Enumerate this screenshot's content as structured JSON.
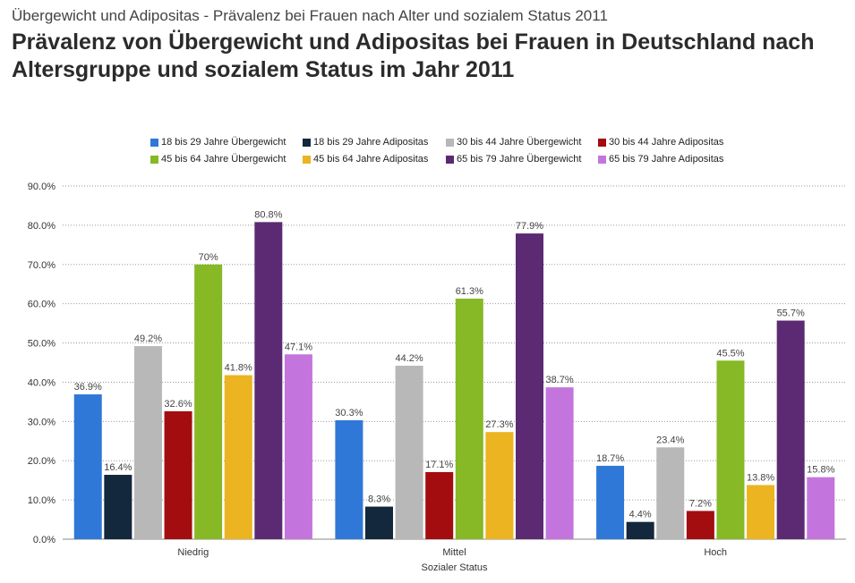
{
  "header": {
    "supertitle": "Übergewicht und Adipositas - Prävalenz bei Frauen nach Alter und sozialem Status 2011",
    "title": "Prävalenz von Übergewicht und Adipositas bei Frauen in Deutschland nach Altersgruppe und sozialem Status im Jahr 2011"
  },
  "chart_data": {
    "type": "bar",
    "title": "Prävalenz von Übergewicht und Adipositas bei Frauen in Deutschland nach Altersgruppe und sozialem Status im Jahr 2011",
    "xlabel": "Sozialer Status",
    "ylabel": "",
    "categories": [
      "Niedrig",
      "Mittel",
      "Hoch"
    ],
    "ylim": [
      0,
      90
    ],
    "yticks": [
      0,
      10,
      20,
      30,
      40,
      50,
      60,
      70,
      80,
      90
    ],
    "ytick_labels": [
      "0.0%",
      "10.0%",
      "20.0%",
      "30.0%",
      "40.0%",
      "50.0%",
      "60.0%",
      "70.0%",
      "80.0%",
      "90.0%"
    ],
    "grid": true,
    "legend_position": "top",
    "series": [
      {
        "name": "18 bis 29 Jahre Übergewicht",
        "color": "#2f78d8",
        "values": [
          36.9,
          30.3,
          18.7
        ],
        "labels": [
          "36.9%",
          "30.3%",
          "18.7%"
        ]
      },
      {
        "name": "18 bis 29 Jahre Adipositas",
        "color": "#13273d",
        "values": [
          16.4,
          8.3,
          4.4
        ],
        "labels": [
          "16.4%",
          "8.3%",
          "4.4%"
        ]
      },
      {
        "name": "30 bis 44 Jahre Übergewicht",
        "color": "#b8b8b8",
        "values": [
          49.2,
          44.2,
          23.4
        ],
        "labels": [
          "49.2%",
          "44.2%",
          "23.4%"
        ]
      },
      {
        "name": "30 bis 44 Jahre Adipositas",
        "color": "#a30d10",
        "values": [
          32.6,
          17.1,
          7.2
        ],
        "labels": [
          "32.6%",
          "17.1%",
          "7.2%"
        ]
      },
      {
        "name": "45 bis 64 Jahre Übergewicht",
        "color": "#86b925",
        "values": [
          70,
          61.3,
          45.5
        ],
        "labels": [
          "70%",
          "61.3%",
          "45.5%"
        ]
      },
      {
        "name": "45 bis 64 Jahre Adipositas",
        "color": "#ebb420",
        "values": [
          41.8,
          27.3,
          13.8
        ],
        "labels": [
          "41.8%",
          "27.3%",
          "13.8%"
        ]
      },
      {
        "name": "65 bis 79 Jahre Übergewicht",
        "color": "#5b2a72",
        "values": [
          80.8,
          77.9,
          55.7
        ],
        "labels": [
          "80.8%",
          "77.9%",
          "55.7%"
        ]
      },
      {
        "name": "65 bis 79 Jahre Adipositas",
        "color": "#c475dd",
        "values": [
          47.1,
          38.7,
          15.8
        ],
        "labels": [
          "47.1%",
          "38.7%",
          "15.8%"
        ]
      }
    ]
  }
}
